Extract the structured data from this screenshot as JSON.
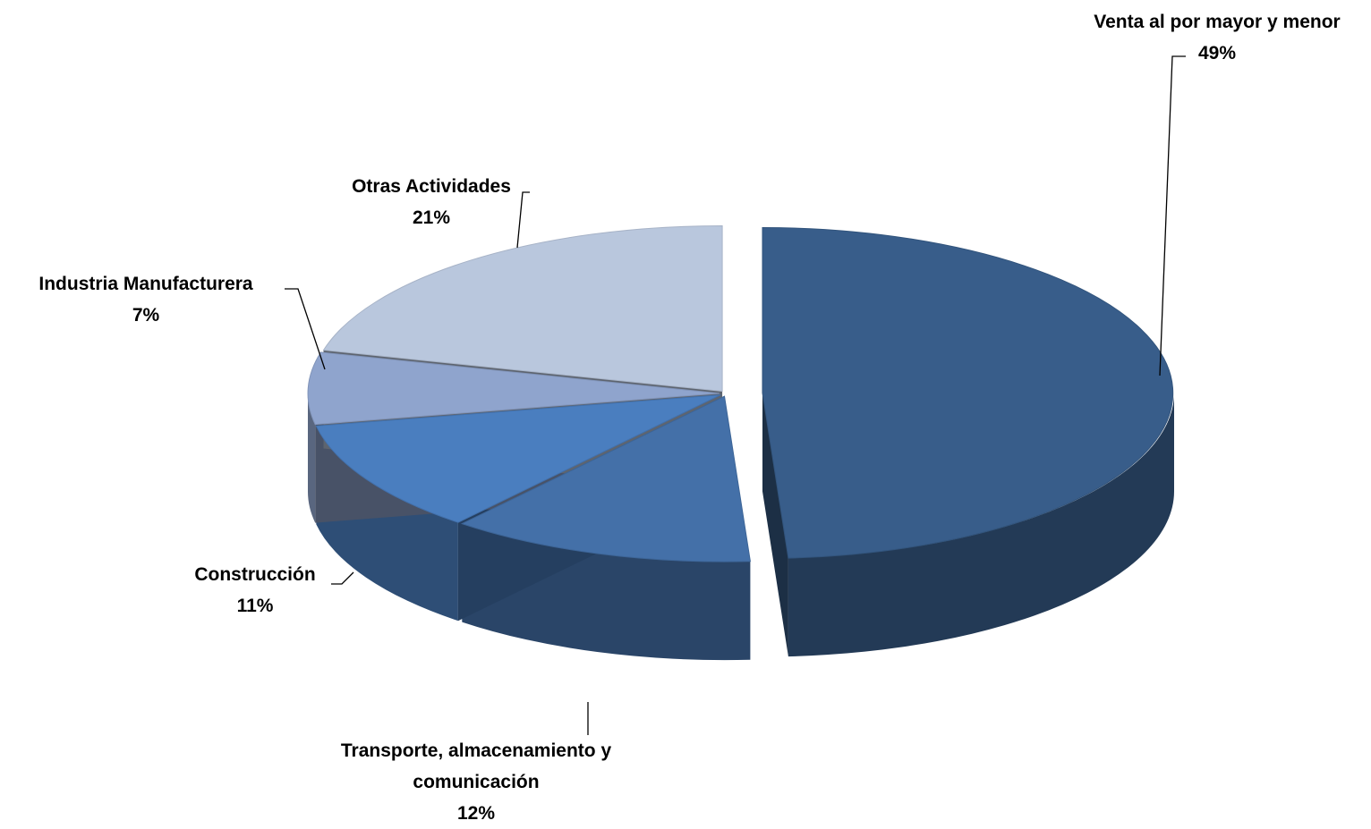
{
  "chart_data": {
    "type": "pie3d",
    "categories": [
      "Venta al por mayor y menor",
      "Transporte, almacenamiento y comunicación",
      "Construcción",
      "Industria Manufacturera",
      "Otras Actividades"
    ],
    "values": [
      49,
      12,
      11,
      7,
      21
    ],
    "value_labels": [
      "49%",
      "12%",
      "11%",
      "7%",
      "21%"
    ],
    "colors": [
      "#385d8a",
      "#4470a8",
      "#4a7ebf",
      "#8fa4cd",
      "#b9c7dd"
    ]
  }
}
